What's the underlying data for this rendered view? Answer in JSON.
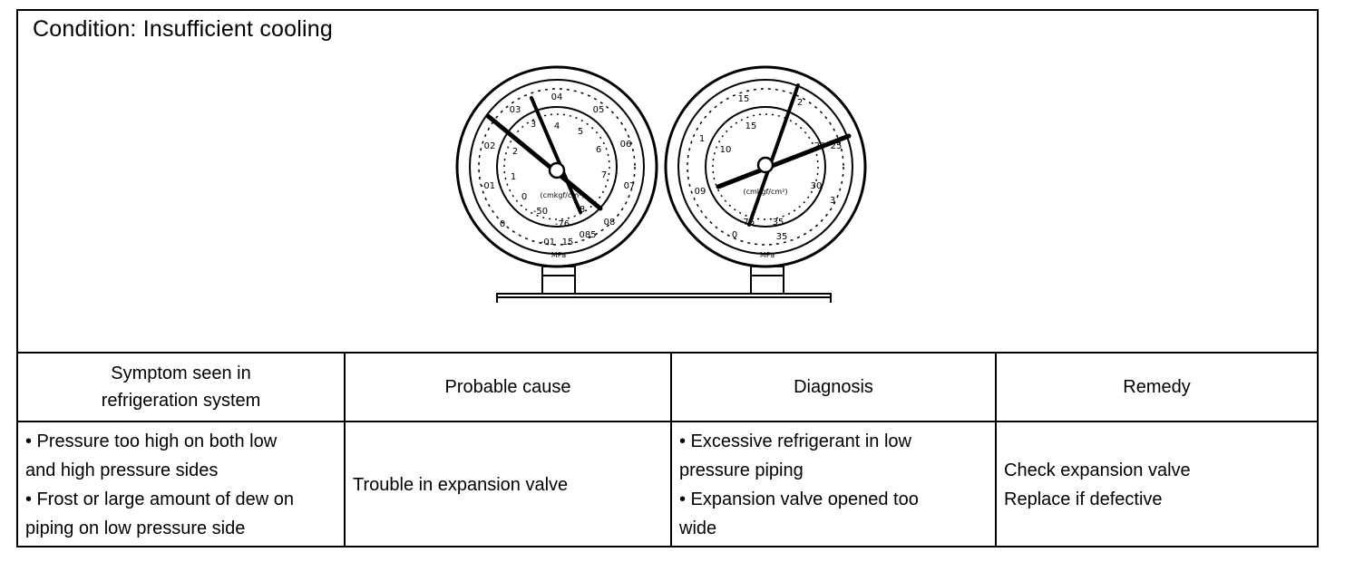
{
  "condition": "Condition: Insufficient cooling",
  "gauges": {
    "low": {
      "outer_scale": [
        "04",
        "05",
        "06",
        "07",
        "08",
        "085",
        "15",
        "-01",
        "0",
        "-01",
        "02",
        "03"
      ],
      "inner_scale": [
        "3",
        "4",
        "5",
        "6",
        "7",
        "8",
        "-76",
        "-50",
        "0",
        "1",
        "2"
      ],
      "unit_label": "(cmkgf/cm²)",
      "unit_bottom": "MPa"
    },
    "high": {
      "outer_scale": [
        "15",
        "2",
        "25",
        "3",
        "35",
        "0",
        "09",
        "1"
      ],
      "inner_scale": [
        "15",
        "10",
        "20",
        "30",
        "35",
        "-76"
      ],
      "unit_label": "(cmkgf/cm²)",
      "unit_bottom": "MPa"
    }
  },
  "table": {
    "headers": {
      "symptom": [
        "Symptom seen in",
        "refrigeration system"
      ],
      "cause": "Probable cause",
      "diagnosis": "Diagnosis",
      "remedy": "Remedy"
    },
    "row": {
      "symptom": [
        "• Pressure too high on both low",
        "and high pressure sides",
        "• Frost or large amount of dew on",
        "piping on low pressure side"
      ],
      "cause": "Trouble in expansion valve",
      "diagnosis": [
        "• Excessive refrigerant in low",
        "pressure piping",
        "• Expansion valve opened too",
        "wide"
      ],
      "remedy": [
        "Check expansion valve",
        "Replace if defective"
      ]
    }
  }
}
